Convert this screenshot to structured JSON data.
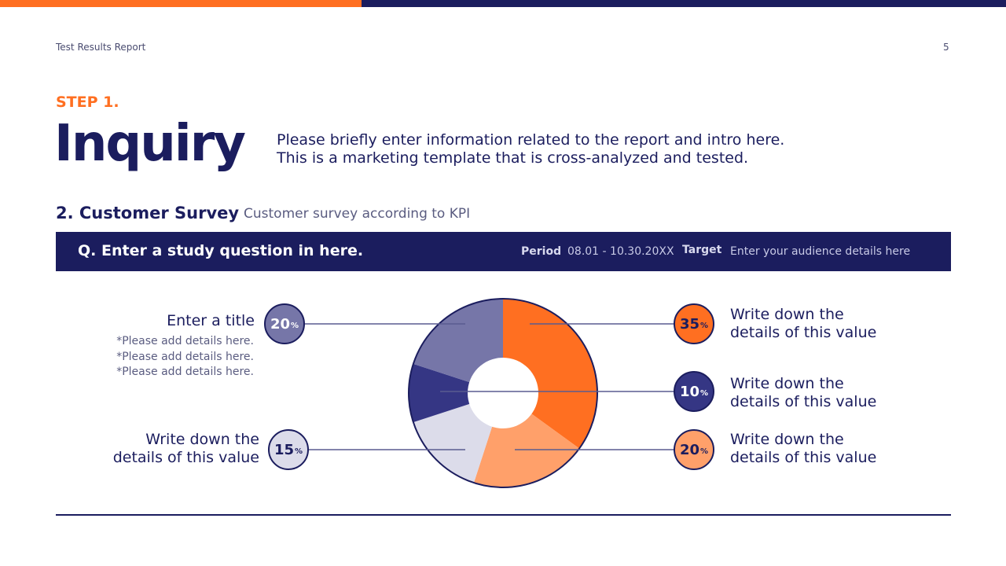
{
  "header": {
    "title": "Test Results Report",
    "page": "5"
  },
  "step": "STEP 1.",
  "title": "Inquiry",
  "intro": [
    "Please briefly enter information related to the report and intro here.",
    "This is a marketing template that is cross-analyzed and tested."
  ],
  "section": {
    "title": "2. Customer Survey",
    "subtitle": "Customer survey according to KPI"
  },
  "band": {
    "question": "Q. Enter a study question in here.",
    "period_label": "Period",
    "period": "08.01 - 10.30.20XX",
    "target_label": "Target",
    "target": "Enter your audience details here"
  },
  "left_top": {
    "title": "Enter a title",
    "details": [
      "*Please add details here.",
      "*Please add details here.",
      "*Please add details here."
    ]
  },
  "text_label": [
    "Write down the",
    "details of this value"
  ],
  "chart_data": {
    "type": "pie",
    "donut": true,
    "unit": "%",
    "slices": [
      {
        "value": 35,
        "color": "#ff6f21"
      },
      {
        "value": 20,
        "color": "#ffa06a"
      },
      {
        "value": 15,
        "color": "#dcdcea"
      },
      {
        "value": 10,
        "color": "#353684"
      },
      {
        "value": 20,
        "color": "#7676a8"
      }
    ]
  }
}
